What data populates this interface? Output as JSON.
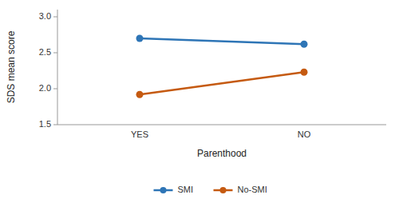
{
  "chart_data": {
    "type": "line",
    "categories": [
      "YES",
      "NO"
    ],
    "series": [
      {
        "name": "SMI",
        "color": "#2E75B6",
        "values": [
          2.7,
          2.62
        ]
      },
      {
        "name": "No-SMI",
        "color": "#C55A11",
        "values": [
          1.92,
          2.23
        ]
      }
    ],
    "x_label": "Parenthood",
    "y_label": "SDS mean score",
    "ylim": [
      1.5,
      3.1
    ],
    "yticks": [
      1.5,
      {
        "value": 2.0,
        "label": "2.0"
      },
      2.5,
      {
        "value": 3.0,
        "label": "3.0"
      }
    ],
    "marker": "circle",
    "grid": false,
    "legend": "bottom"
  }
}
